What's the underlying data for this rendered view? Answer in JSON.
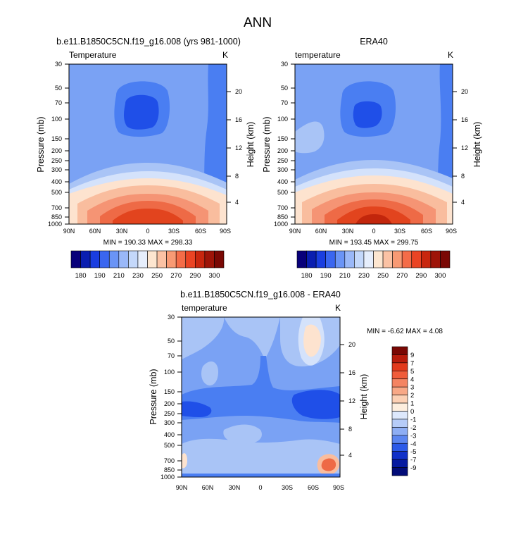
{
  "title": "ANN",
  "chart_data": [
    {
      "type": "heatmap",
      "title": "b.e11.B1850C5CN.f19_g16.008 (yrs 981-1000)",
      "left_label": "Temperature",
      "right_label": "K",
      "xlabel": "",
      "ylabel": "Pressure (mb)",
      "ylabel_right": "Height (km)",
      "x_ticks": [
        "90N",
        "60N",
        "30N",
        "0",
        "30S",
        "60S",
        "90S"
      ],
      "y_ticks": [
        "30",
        "50",
        "70",
        "100",
        "150",
        "200",
        "250",
        "300",
        "400",
        "500",
        "700",
        "850",
        "1000"
      ],
      "y_ticks_right": [
        "20",
        "16",
        "12",
        "8",
        "4"
      ],
      "min_max": "MIN = 190.33  MAX = 298.33",
      "ylim": [
        1000,
        30
      ],
      "xlim": [
        90,
        -90
      ]
    },
    {
      "type": "heatmap",
      "title": "ERA40",
      "left_label": "temperature",
      "right_label": "K",
      "xlabel": "",
      "ylabel": "Pressure (mb)",
      "ylabel_right": "Height (km)",
      "x_ticks": [
        "90N",
        "60N",
        "30N",
        "0",
        "30S",
        "60S",
        "90S"
      ],
      "y_ticks": [
        "30",
        "50",
        "70",
        "100",
        "150",
        "200",
        "250",
        "300",
        "400",
        "500",
        "700",
        "850",
        "1000"
      ],
      "y_ticks_right": [
        "20",
        "16",
        "12",
        "8",
        "4"
      ],
      "min_max": "MIN = 193.45  MAX = 299.75",
      "ylim": [
        1000,
        30
      ],
      "xlim": [
        90,
        -90
      ]
    },
    {
      "type": "heatmap",
      "title": "b.e11.B1850C5CN.f19_g16.008 - ERA40",
      "left_label": "temperature",
      "right_label": "K",
      "xlabel": "",
      "ylabel": "Pressure (mb)",
      "ylabel_right": "Height (km)",
      "x_ticks": [
        "90N",
        "60N",
        "30N",
        "0",
        "30S",
        "60S",
        "90S"
      ],
      "y_ticks": [
        "30",
        "50",
        "70",
        "100",
        "150",
        "200",
        "250",
        "300",
        "400",
        "500",
        "700",
        "850",
        "1000"
      ],
      "y_ticks_right": [
        "20",
        "16",
        "12",
        "8",
        "4"
      ],
      "min_max": "MIN = -6.62  MAX =  4.08",
      "ylim": [
        1000,
        30
      ],
      "xlim": [
        90,
        -90
      ]
    }
  ],
  "colorbar_abs": {
    "labels": [
      "180",
      "190",
      "210",
      "230",
      "250",
      "270",
      "290",
      "300"
    ],
    "colors": [
      "#08007a",
      "#0a1eb0",
      "#1a3ee0",
      "#3a66f0",
      "#6a94f6",
      "#9ab8f8",
      "#c4d8fa",
      "#e6eefc",
      "#fde6d0",
      "#fbc2a4",
      "#f89a74",
      "#f46c48",
      "#ea4424",
      "#c8260e",
      "#9e1408",
      "#7a0804"
    ]
  },
  "colorbar_diff": {
    "labels": [
      "9",
      "7",
      "5",
      "4",
      "3",
      "2",
      "1",
      "0",
      "-1",
      "-2",
      "-3",
      "-4",
      "-5",
      "-7",
      "-9"
    ],
    "colors": [
      "#7a0804",
      "#b81c0c",
      "#e23a1c",
      "#f05c3a",
      "#f48462",
      "#f8a886",
      "#fcd0b4",
      "#fdeede",
      "#dde8fc",
      "#b6ccf8",
      "#8eaef4",
      "#5c86f0",
      "#2c5ae8",
      "#1030c8",
      "#061aa0",
      "#020c78"
    ]
  },
  "palette": {
    "c_dark": "#1f4fe8",
    "c_mid": "#4a7ef2",
    "c_base": "#7aa2f4",
    "c_light": "#a9c4f6",
    "c_pale": "#d4e2fb",
    "c_peach": "#fde3cf",
    "c_salmon": "#f9bd9e",
    "c_coral": "#f59474",
    "c_red": "#ee6a46",
    "c_deep": "#e2441e",
    "c_crimson": "#c2260c"
  }
}
